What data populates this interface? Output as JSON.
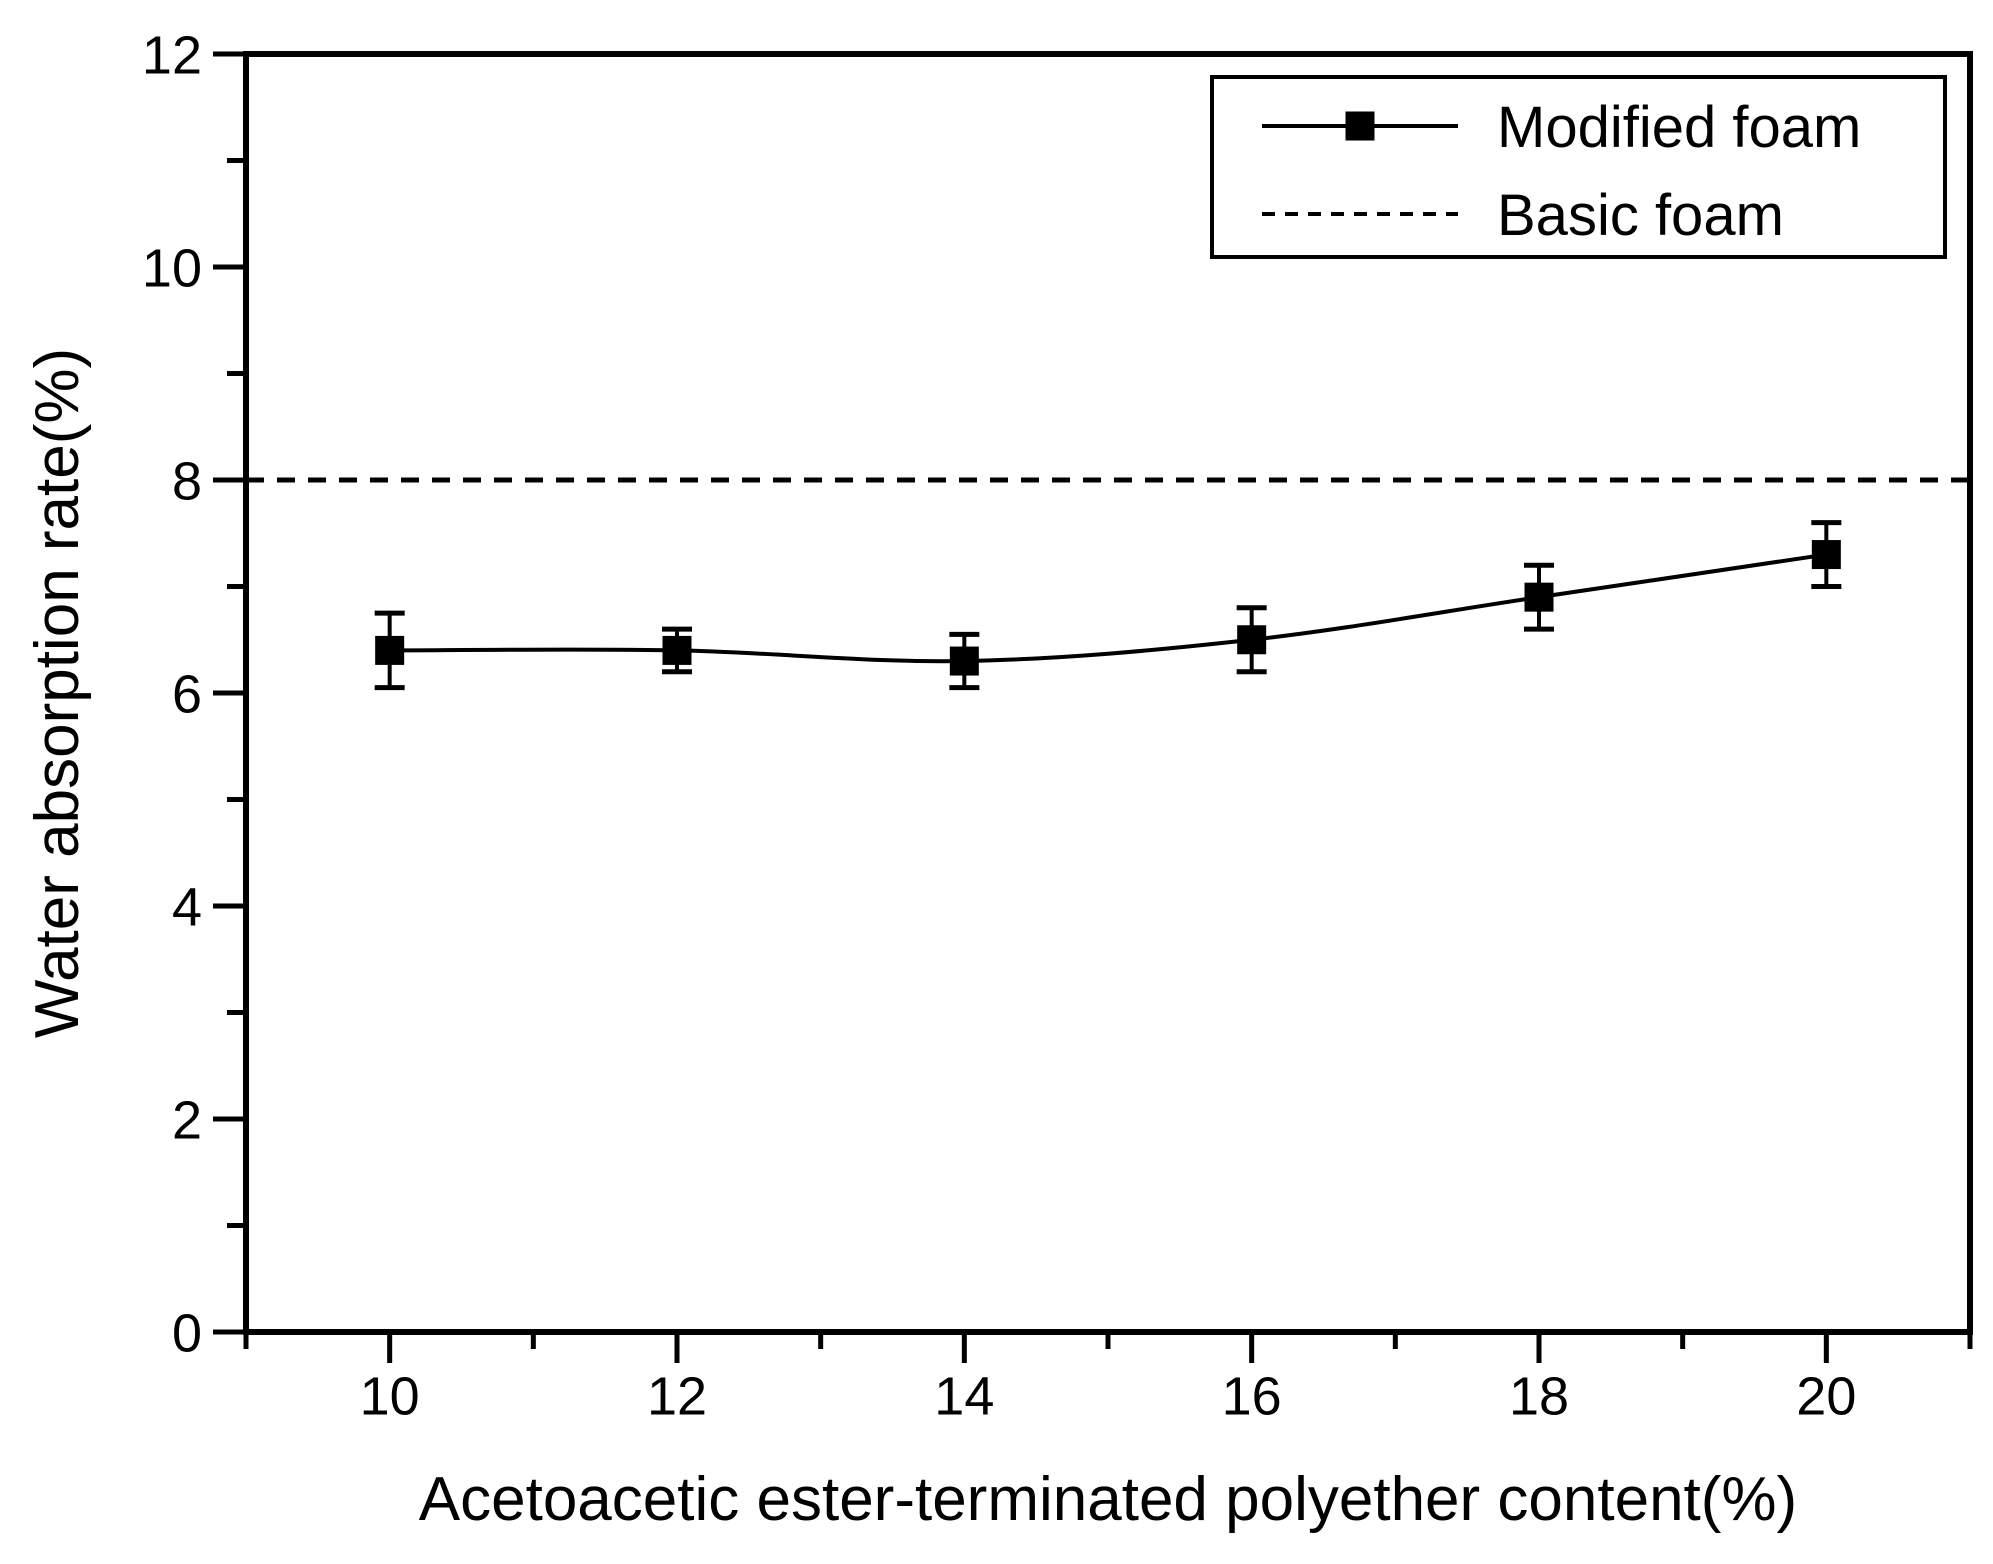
{
  "chart_data": {
    "type": "line",
    "x_title": "Acetoacetic ester-terminated polyether content(%)",
    "y_title": "Water absorption rate(%)",
    "xlim": [
      9,
      21
    ],
    "ylim": [
      0,
      12
    ],
    "x_ticks_major": [
      10,
      12,
      14,
      16,
      18,
      20
    ],
    "x_ticks_minor": [
      9,
      11,
      13,
      15,
      17,
      19,
      21
    ],
    "y_ticks_major": [
      0,
      2,
      4,
      6,
      8,
      10,
      12
    ],
    "y_ticks_minor": [
      1,
      3,
      5,
      7,
      9,
      11
    ],
    "grid": "off",
    "legend_position": "top-right",
    "series": [
      {
        "name": "Modified foam",
        "style": "solid-line-with-filled-square-markers",
        "x": [
          10,
          12,
          14,
          16,
          18,
          20
        ],
        "y": [
          6.4,
          6.4,
          6.3,
          6.5,
          6.9,
          7.3
        ],
        "y_err": [
          0.35,
          0.2,
          0.25,
          0.3,
          0.3,
          0.3
        ]
      },
      {
        "name": "Basic foam",
        "style": "dashed-horizontal-line",
        "value": 8.0
      }
    ],
    "legend": [
      {
        "label": "Modified foam",
        "sample": "line-with-square-marker"
      },
      {
        "label": "Basic foam",
        "sample": "dashed-line"
      }
    ],
    "colors": {
      "foreground": "#000000",
      "background": "#ffffff"
    }
  }
}
